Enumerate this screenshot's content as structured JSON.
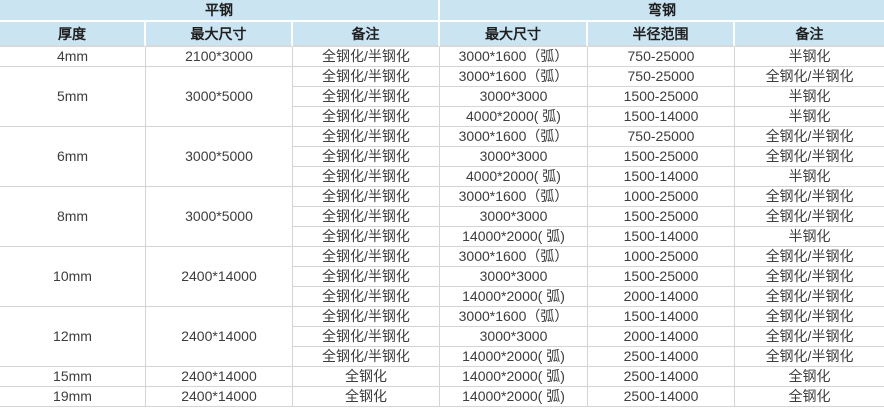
{
  "table": {
    "group_headers": [
      {
        "label": "平钢"
      },
      {
        "label": "弯钢"
      }
    ],
    "columns": [
      "厚度",
      "最大尺寸",
      "备注",
      "最大尺寸",
      "半径范围",
      "备注"
    ],
    "colors": {
      "header_bg": "#cbe4f2",
      "grid_border": "#d4d4d4",
      "header_text": "#1f1f1f",
      "body_text": "#3d3d3d"
    },
    "groups": [
      {
        "thickness": "4mm",
        "flat_max_size": "2100*3000",
        "rows": [
          {
            "flat_note": "全钢化/半钢化",
            "bent_max_size": "3000*1600（弧）",
            "radius_range": "750-25000",
            "bent_note": "半钢化"
          }
        ]
      },
      {
        "thickness": "5mm",
        "flat_max_size": "3000*5000",
        "rows": [
          {
            "flat_note": "全钢化/半钢化",
            "bent_max_size": "3000*1600（弧）",
            "radius_range": "750-25000",
            "bent_note": "全钢化/半钢化"
          },
          {
            "flat_note": "全钢化/半钢化",
            "bent_max_size": "3000*3000",
            "radius_range": "1500-25000",
            "bent_note": "半钢化"
          },
          {
            "flat_note": "全钢化/半钢化",
            "bent_max_size": "4000*2000( 弧)",
            "radius_range": "1500-14000",
            "bent_note": "半钢化"
          }
        ]
      },
      {
        "thickness": "6mm",
        "flat_max_size": "3000*5000",
        "rows": [
          {
            "flat_note": "全钢化/半钢化",
            "bent_max_size": "3000*1600（弧）",
            "radius_range": "750-25000",
            "bent_note": "全钢化/半钢化"
          },
          {
            "flat_note": "全钢化/半钢化",
            "bent_max_size": "3000*3000",
            "radius_range": "1500-25000",
            "bent_note": "全钢化/半钢化"
          },
          {
            "flat_note": "全钢化/半钢化",
            "bent_max_size": "4000*2000( 弧)",
            "radius_range": "1500-14000",
            "bent_note": "半钢化"
          }
        ]
      },
      {
        "thickness": "8mm",
        "flat_max_size": "3000*5000",
        "rows": [
          {
            "flat_note": "全钢化/半钢化",
            "bent_max_size": "3000*1600（弧）",
            "radius_range": "1000-25000",
            "bent_note": "全钢化/半钢化"
          },
          {
            "flat_note": "全钢化/半钢化",
            "bent_max_size": "3000*3000",
            "radius_range": "1500-25000",
            "bent_note": "全钢化/半钢化"
          },
          {
            "flat_note": "全钢化/半钢化",
            "bent_max_size": "14000*2000( 弧)",
            "radius_range": "1500-14000",
            "bent_note": "半钢化"
          }
        ]
      },
      {
        "thickness": "10mm",
        "flat_max_size": "2400*14000",
        "rows": [
          {
            "flat_note": "全钢化/半钢化",
            "bent_max_size": "3000*1600（弧）",
            "radius_range": "1000-25000",
            "bent_note": "全钢化/半钢化"
          },
          {
            "flat_note": "全钢化/半钢化",
            "bent_max_size": "3000*3000",
            "radius_range": "1500-25000",
            "bent_note": "全钢化/半钢化"
          },
          {
            "flat_note": "全钢化/半钢化",
            "bent_max_size": "14000*2000( 弧)",
            "radius_range": "2000-14000",
            "bent_note": "全钢化/半钢化"
          }
        ]
      },
      {
        "thickness": "12mm",
        "flat_max_size": "2400*14000",
        "rows": [
          {
            "flat_note": "全钢化/半钢化",
            "bent_max_size": "3000*1600（弧）",
            "radius_range": "1500-14000",
            "bent_note": "全钢化/半钢化"
          },
          {
            "flat_note": "全钢化/半钢化",
            "bent_max_size": "3000*3000",
            "radius_range": "2000-14000",
            "bent_note": "全钢化/半钢化"
          },
          {
            "flat_note": "全钢化/半钢化",
            "bent_max_size": "14000*2000( 弧)",
            "radius_range": "2500-14000",
            "bent_note": "全钢化/半钢化"
          }
        ]
      },
      {
        "thickness": "15mm",
        "flat_max_size": "2400*14000",
        "rows": [
          {
            "flat_note": "全钢化",
            "bent_max_size": "14000*2000( 弧)",
            "radius_range": "2500-14000",
            "bent_note": "全钢化"
          }
        ]
      },
      {
        "thickness": "19mm",
        "flat_max_size": "2400*14000",
        "rows": [
          {
            "flat_note": "全钢化",
            "bent_max_size": "14000*2000( 弧)",
            "radius_range": "2500-14000",
            "bent_note": "全钢化"
          }
        ]
      }
    ]
  }
}
